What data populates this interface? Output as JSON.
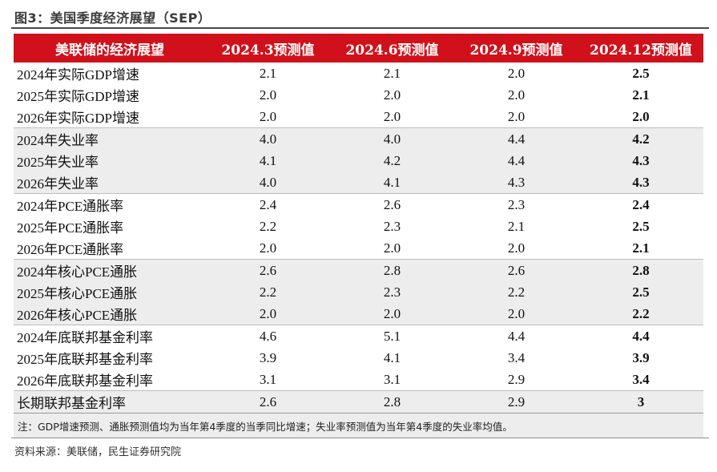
{
  "figure_title": "图3：美国季度经济展望（SEP）",
  "headers": [
    "美联储的经济展望",
    "2024.3预测值",
    "2024.6预测值",
    "2024.9预测值",
    "2024.12预测值"
  ],
  "rows": [
    {
      "label": "2024年实际GDP增速",
      "values": [
        "2.1",
        "2.1",
        "2.0",
        "2.5"
      ]
    },
    {
      "label": "2025年实际GDP增速",
      "values": [
        "2.0",
        "2.0",
        "2.0",
        "2.1"
      ]
    },
    {
      "label": "2026年实际GDP增速",
      "values": [
        "2.0",
        "2.0",
        "2.0",
        "2.0"
      ]
    },
    {
      "label": "2024年失业率",
      "values": [
        "4.0",
        "4.0",
        "4.4",
        "4.2"
      ]
    },
    {
      "label": "2025年失业率",
      "values": [
        "4.1",
        "4.2",
        "4.4",
        "4.3"
      ]
    },
    {
      "label": "2026年失业率",
      "values": [
        "4.0",
        "4.1",
        "4.3",
        "4.3"
      ]
    },
    {
      "label": "2024年PCE通胀率",
      "values": [
        "2.4",
        "2.6",
        "2.3",
        "2.4"
      ]
    },
    {
      "label": "2025年PCE通胀率",
      "values": [
        "2.2",
        "2.3",
        "2.1",
        "2.5"
      ]
    },
    {
      "label": "2026年PCE通胀率",
      "values": [
        "2.0",
        "2.0",
        "2.0",
        "2.1"
      ]
    },
    {
      "label": "2024年核心PCE通胀",
      "values": [
        "2.6",
        "2.8",
        "2.6",
        "2.8"
      ]
    },
    {
      "label": "2025年核心PCE通胀",
      "values": [
        "2.2",
        "2.3",
        "2.2",
        "2.5"
      ]
    },
    {
      "label": "2026年核心PCE通胀",
      "values": [
        "2.0",
        "2.0",
        "2.0",
        "2.2"
      ]
    },
    {
      "label": "2024年底联邦基金利率",
      "values": [
        "4.6",
        "5.1",
        "4.4",
        "4.4"
      ]
    },
    {
      "label": "2025年底联邦基金利率",
      "values": [
        "3.9",
        "4.1",
        "3.4",
        "3.9"
      ]
    },
    {
      "label": "2026年底联邦基金利率",
      "values": [
        "3.1",
        "3.1",
        "2.9",
        "3.4"
      ]
    },
    {
      "label": "长期联邦基金利率",
      "values": [
        "2.6",
        "2.8",
        "2.9",
        "3"
      ]
    }
  ],
  "note": "注：GDP增速预测、通胀预测值均为当年第4季度的当季同比增速；失业率预测值为当年第4季度的失业率均值。",
  "source": "资料来源：美联储，民生证券研究院",
  "colors": {
    "header_bg": "#d0111b",
    "header_text": "#ffffff",
    "shaded_row": "#ededed"
  }
}
